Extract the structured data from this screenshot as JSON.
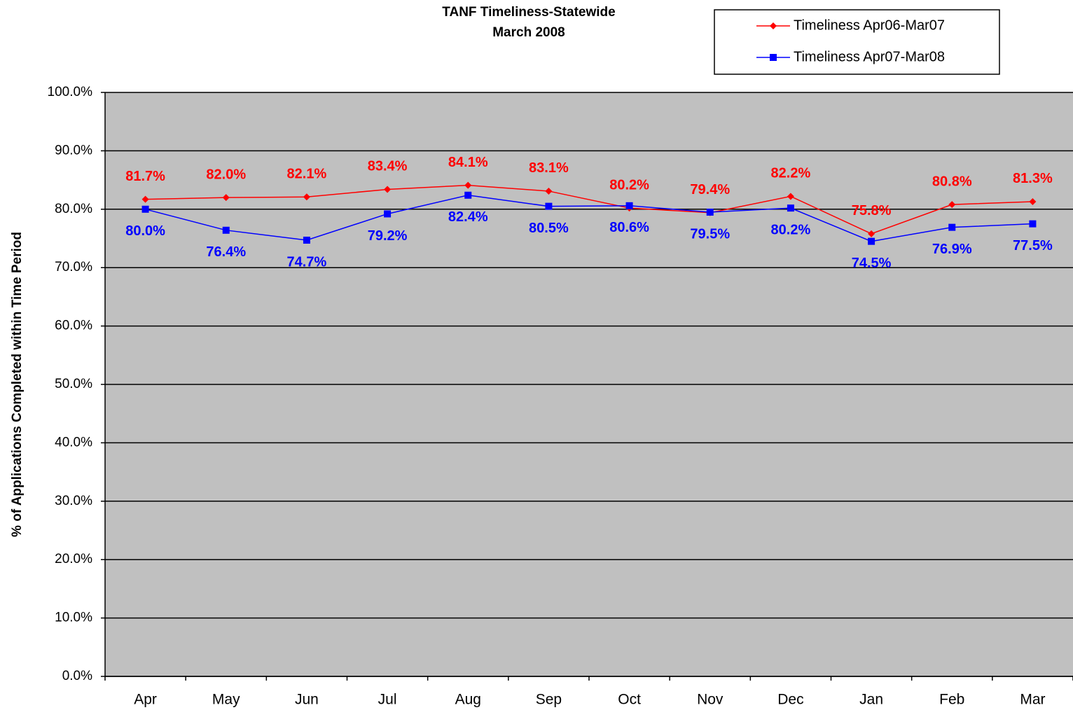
{
  "chart_data": {
    "type": "line",
    "title": "TANF Timeliness-Statewide",
    "subtitle": "March 2008",
    "ylabel": "% of Applications Completed within Time Period",
    "categories": [
      "Apr",
      "May",
      "Jun",
      "Jul",
      "Aug",
      "Sep",
      "Oct",
      "Nov",
      "Dec",
      "Jan",
      "Feb",
      "Mar"
    ],
    "series": [
      {
        "name": "Timeliness Apr06-Mar07",
        "color": "#ff0000",
        "marker": "diamond",
        "values": [
          81.7,
          82.0,
          82.1,
          83.4,
          84.1,
          83.1,
          80.2,
          79.4,
          82.2,
          75.8,
          80.8,
          81.3
        ],
        "value_labels": [
          "81.7%",
          "82.0%",
          "82.1%",
          "83.4%",
          "84.1%",
          "83.1%",
          "80.2%",
          "79.4%",
          "82.2%",
          "75.8%",
          "80.8%",
          "81.3%"
        ]
      },
      {
        "name": "Timeliness Apr07-Mar08",
        "color": "#0000ff",
        "marker": "square",
        "values": [
          80.0,
          76.4,
          74.7,
          79.2,
          82.4,
          80.5,
          80.6,
          79.5,
          80.2,
          74.5,
          76.9,
          77.5
        ],
        "value_labels": [
          "80.0%",
          "76.4%",
          "74.7%",
          "79.2%",
          "82.4%",
          "80.5%",
          "80.6%",
          "79.5%",
          "80.2%",
          "74.5%",
          "76.9%",
          "77.5%"
        ]
      }
    ],
    "ylim": [
      0,
      100
    ],
    "yticks": [
      {
        "value": 0,
        "label": "0.0%"
      },
      {
        "value": 10,
        "label": "10.0%"
      },
      {
        "value": 20,
        "label": "20.0%"
      },
      {
        "value": 30,
        "label": "30.0%"
      },
      {
        "value": 40,
        "label": "40.0%"
      },
      {
        "value": 50,
        "label": "50.0%"
      },
      {
        "value": 60,
        "label": "60.0%"
      },
      {
        "value": 70,
        "label": "70.0%"
      },
      {
        "value": 80,
        "label": "80.0%"
      },
      {
        "value": 90,
        "label": "90.0%"
      },
      {
        "value": 100,
        "label": "100.0%"
      }
    ],
    "grid": true,
    "legend": "top-right",
    "background": "#c0c0c0"
  }
}
